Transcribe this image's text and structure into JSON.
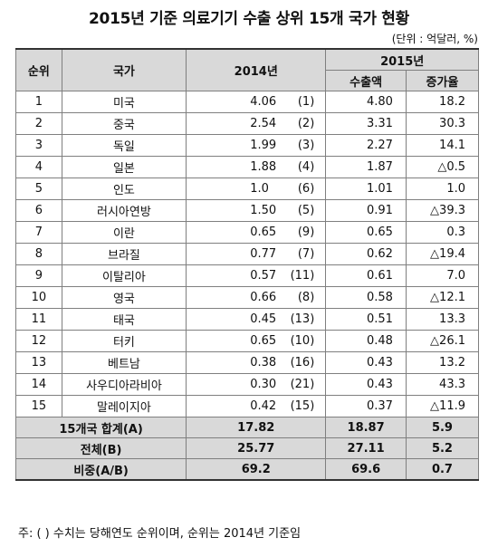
{
  "title": "2015년 기준 의료기기 수출 상위 15개 국가 현황",
  "unit": "(단위 : 억달러, %)",
  "headers": {
    "rank": "순위",
    "country": "국가",
    "y2014": "2014년",
    "y2015": "2015년",
    "exports": "수출액",
    "growth": "증가율"
  },
  "rows": [
    {
      "rank": "1",
      "country": "미국",
      "v2014": "4.06",
      "rank2014": "(1)",
      "v2015": "4.80",
      "growth": "18.2"
    },
    {
      "rank": "2",
      "country": "중국",
      "v2014": "2.54",
      "rank2014": "(2)",
      "v2015": "3.31",
      "growth": "30.3"
    },
    {
      "rank": "3",
      "country": "독일",
      "v2014": "1.99",
      "rank2014": "(3)",
      "v2015": "2.27",
      "growth": "14.1"
    },
    {
      "rank": "4",
      "country": "일본",
      "v2014": "1.88",
      "rank2014": "(4)",
      "v2015": "1.87",
      "growth": "△0.5"
    },
    {
      "rank": "5",
      "country": "인도",
      "v2014": "1.0",
      "rank2014": "(6)",
      "v2015": "1.01",
      "growth": "1.0"
    },
    {
      "rank": "6",
      "country": "러시아연방",
      "v2014": "1.50",
      "rank2014": "(5)",
      "v2015": "0.91",
      "growth": "△39.3"
    },
    {
      "rank": "7",
      "country": "이란",
      "v2014": "0.65",
      "rank2014": "(9)",
      "v2015": "0.65",
      "growth": "0.3"
    },
    {
      "rank": "8",
      "country": "브라질",
      "v2014": "0.77",
      "rank2014": "(7)",
      "v2015": "0.62",
      "growth": "△19.4"
    },
    {
      "rank": "9",
      "country": "이탈리아",
      "v2014": "0.57",
      "rank2014": "(11)",
      "v2015": "0.61",
      "growth": "7.0"
    },
    {
      "rank": "10",
      "country": "영국",
      "v2014": "0.66",
      "rank2014": "(8)",
      "v2015": "0.58",
      "growth": "△12.1"
    },
    {
      "rank": "11",
      "country": "태국",
      "v2014": "0.45",
      "rank2014": "(13)",
      "v2015": "0.51",
      "growth": "13.3"
    },
    {
      "rank": "12",
      "country": "터키",
      "v2014": "0.65",
      "rank2014": "(10)",
      "v2015": "0.48",
      "growth": "△26.1"
    },
    {
      "rank": "13",
      "country": "베트남",
      "v2014": "0.38",
      "rank2014": "(16)",
      "v2015": "0.43",
      "growth": "13.2"
    },
    {
      "rank": "14",
      "country": "사우디아라비아",
      "v2014": "0.30",
      "rank2014": "(21)",
      "v2015": "0.43",
      "growth": "43.3"
    },
    {
      "rank": "15",
      "country": "말레이지아",
      "v2014": "0.42",
      "rank2014": "(15)",
      "v2015": "0.37",
      "growth": "△11.9"
    }
  ],
  "summary": [
    {
      "label": "15개국 합계(A)",
      "v2014": "17.82",
      "v2015": "18.87",
      "growth": "5.9"
    },
    {
      "label": "전체(B)",
      "v2014": "25.77",
      "v2015": "27.11",
      "growth": "5.2"
    },
    {
      "label": "비중(A/B)",
      "v2014": "69.2",
      "v2015": "69.6",
      "growth": "0.7"
    }
  ],
  "footnote": "주:  ( ) 수치는 당해연도 순위이며, 순위는 2014년 기준임"
}
